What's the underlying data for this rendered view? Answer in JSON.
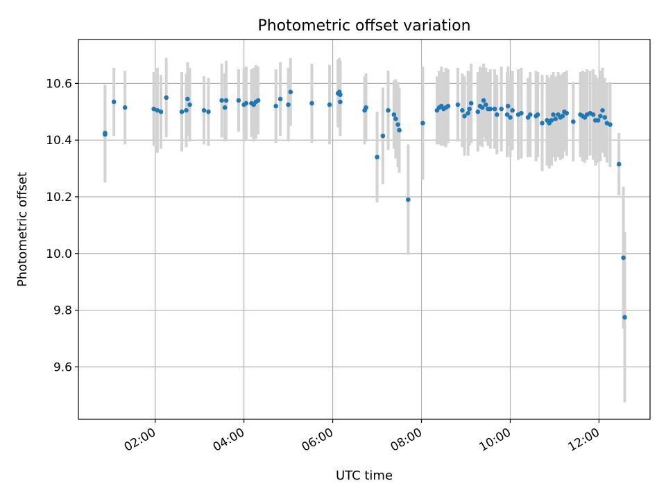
{
  "chart_data": {
    "type": "scatter",
    "title": "Photometric offset variation",
    "xlabel": "UTC time",
    "ylabel": "Photometric offset",
    "x_unit": "hours UTC",
    "xlim": [
      0.27,
      13.15
    ],
    "ylim": [
      9.415,
      10.755
    ],
    "x_ticks": [
      2,
      4,
      6,
      8,
      10,
      12
    ],
    "x_tick_labels": [
      "02:00",
      "04:00",
      "06:00",
      "08:00",
      "10:00",
      "12:00"
    ],
    "y_ticks": [
      9.6,
      9.8,
      10.0,
      10.2,
      10.4,
      10.6
    ],
    "y_tick_labels": [
      "9.6",
      "9.8",
      "10.0",
      "10.2",
      "10.4",
      "10.6"
    ],
    "grid": true,
    "marker_color": "#1f77b4",
    "errorbar_color": "#d3d3d3",
    "points": [
      {
        "x": 0.87,
        "y": 10.42,
        "err": 0.17
      },
      {
        "x": 0.87,
        "y": 10.425,
        "err": 0.17
      },
      {
        "x": 1.07,
        "y": 10.535,
        "err": 0.12
      },
      {
        "x": 1.32,
        "y": 10.515,
        "err": 0.13
      },
      {
        "x": 1.97,
        "y": 10.51,
        "err": 0.13
      },
      {
        "x": 2.05,
        "y": 10.505,
        "err": 0.15
      },
      {
        "x": 2.13,
        "y": 10.5,
        "err": 0.13
      },
      {
        "x": 2.25,
        "y": 10.55,
        "err": 0.14
      },
      {
        "x": 2.6,
        "y": 10.5,
        "err": 0.14
      },
      {
        "x": 2.7,
        "y": 10.505,
        "err": 0.13
      },
      {
        "x": 2.73,
        "y": 10.545,
        "err": 0.13
      },
      {
        "x": 2.78,
        "y": 10.525,
        "err": 0.13
      },
      {
        "x": 3.1,
        "y": 10.505,
        "err": 0.12
      },
      {
        "x": 3.2,
        "y": 10.5,
        "err": 0.12
      },
      {
        "x": 3.5,
        "y": 10.54,
        "err": 0.13
      },
      {
        "x": 3.57,
        "y": 10.515,
        "err": 0.12
      },
      {
        "x": 3.6,
        "y": 10.54,
        "err": 0.14
      },
      {
        "x": 3.88,
        "y": 10.54,
        "err": 0.11
      },
      {
        "x": 4.0,
        "y": 10.525,
        "err": 0.13
      },
      {
        "x": 4.05,
        "y": 10.53,
        "err": 0.13
      },
      {
        "x": 4.17,
        "y": 10.53,
        "err": 0.12
      },
      {
        "x": 4.22,
        "y": 10.525,
        "err": 0.13
      },
      {
        "x": 4.27,
        "y": 10.535,
        "err": 0.13
      },
      {
        "x": 4.32,
        "y": 10.54,
        "err": 0.12
      },
      {
        "x": 4.72,
        "y": 10.52,
        "err": 0.13
      },
      {
        "x": 4.82,
        "y": 10.545,
        "err": 0.13
      },
      {
        "x": 5.0,
        "y": 10.525,
        "err": 0.13
      },
      {
        "x": 5.05,
        "y": 10.57,
        "err": 0.12
      },
      {
        "x": 5.53,
        "y": 10.53,
        "err": 0.14
      },
      {
        "x": 5.93,
        "y": 10.525,
        "err": 0.14
      },
      {
        "x": 6.12,
        "y": 10.565,
        "err": 0.12
      },
      {
        "x": 6.15,
        "y": 10.57,
        "err": 0.12
      },
      {
        "x": 6.17,
        "y": 10.535,
        "err": 0.12
      },
      {
        "x": 6.17,
        "y": 10.56,
        "err": 0.12
      },
      {
        "x": 6.72,
        "y": 10.505,
        "err": 0.12
      },
      {
        "x": 6.75,
        "y": 10.515,
        "err": 0.12
      },
      {
        "x": 7.0,
        "y": 10.34,
        "err": 0.16
      },
      {
        "x": 7.13,
        "y": 10.415,
        "err": 0.17
      },
      {
        "x": 7.25,
        "y": 10.505,
        "err": 0.14
      },
      {
        "x": 7.38,
        "y": 10.49,
        "err": 0.12
      },
      {
        "x": 7.42,
        "y": 10.475,
        "err": 0.14
      },
      {
        "x": 7.47,
        "y": 10.455,
        "err": 0.15
      },
      {
        "x": 7.5,
        "y": 10.435,
        "err": 0.15
      },
      {
        "x": 7.7,
        "y": 10.19,
        "err": 0.195
      },
      {
        "x": 8.03,
        "y": 10.46,
        "err": 0.2
      },
      {
        "x": 8.35,
        "y": 10.505,
        "err": 0.12
      },
      {
        "x": 8.4,
        "y": 10.515,
        "err": 0.13
      },
      {
        "x": 8.45,
        "y": 10.52,
        "err": 0.14
      },
      {
        "x": 8.5,
        "y": 10.51,
        "err": 0.13
      },
      {
        "x": 8.55,
        "y": 10.515,
        "err": 0.14
      },
      {
        "x": 8.6,
        "y": 10.52,
        "err": 0.13
      },
      {
        "x": 8.82,
        "y": 10.525,
        "err": 0.13
      },
      {
        "x": 8.92,
        "y": 10.505,
        "err": 0.13
      },
      {
        "x": 8.97,
        "y": 10.485,
        "err": 0.14
      },
      {
        "x": 9.05,
        "y": 10.495,
        "err": 0.15
      },
      {
        "x": 9.08,
        "y": 10.51,
        "err": 0.13
      },
      {
        "x": 9.12,
        "y": 10.53,
        "err": 0.14
      },
      {
        "x": 9.27,
        "y": 10.5,
        "err": 0.14
      },
      {
        "x": 9.32,
        "y": 10.52,
        "err": 0.14
      },
      {
        "x": 9.37,
        "y": 10.515,
        "err": 0.14
      },
      {
        "x": 9.4,
        "y": 10.54,
        "err": 0.13
      },
      {
        "x": 9.45,
        "y": 10.525,
        "err": 0.13
      },
      {
        "x": 9.5,
        "y": 10.51,
        "err": 0.13
      },
      {
        "x": 9.55,
        "y": 10.51,
        "err": 0.14
      },
      {
        "x": 9.65,
        "y": 10.51,
        "err": 0.14
      },
      {
        "x": 9.7,
        "y": 10.49,
        "err": 0.14
      },
      {
        "x": 9.8,
        "y": 10.51,
        "err": 0.15
      },
      {
        "x": 9.93,
        "y": 10.49,
        "err": 0.15
      },
      {
        "x": 9.95,
        "y": 10.52,
        "err": 0.14
      },
      {
        "x": 10.0,
        "y": 10.48,
        "err": 0.14
      },
      {
        "x": 10.05,
        "y": 10.505,
        "err": 0.14
      },
      {
        "x": 10.18,
        "y": 10.49,
        "err": 0.16
      },
      {
        "x": 10.25,
        "y": 10.495,
        "err": 0.16
      },
      {
        "x": 10.4,
        "y": 10.48,
        "err": 0.14
      },
      {
        "x": 10.45,
        "y": 10.49,
        "err": 0.15
      },
      {
        "x": 10.58,
        "y": 10.485,
        "err": 0.16
      },
      {
        "x": 10.62,
        "y": 10.49,
        "err": 0.15
      },
      {
        "x": 10.72,
        "y": 10.46,
        "err": 0.17
      },
      {
        "x": 10.83,
        "y": 10.47,
        "err": 0.16
      },
      {
        "x": 10.88,
        "y": 10.46,
        "err": 0.16
      },
      {
        "x": 10.93,
        "y": 10.47,
        "err": 0.16
      },
      {
        "x": 10.97,
        "y": 10.49,
        "err": 0.15
      },
      {
        "x": 11.02,
        "y": 10.475,
        "err": 0.15
      },
      {
        "x": 11.08,
        "y": 10.49,
        "err": 0.15
      },
      {
        "x": 11.13,
        "y": 10.48,
        "err": 0.15
      },
      {
        "x": 11.18,
        "y": 10.485,
        "err": 0.15
      },
      {
        "x": 11.22,
        "y": 10.5,
        "err": 0.14
      },
      {
        "x": 11.27,
        "y": 10.495,
        "err": 0.15
      },
      {
        "x": 11.42,
        "y": 10.465,
        "err": 0.14
      },
      {
        "x": 11.58,
        "y": 10.49,
        "err": 0.15
      },
      {
        "x": 11.63,
        "y": 10.485,
        "err": 0.16
      },
      {
        "x": 11.68,
        "y": 10.48,
        "err": 0.16
      },
      {
        "x": 11.73,
        "y": 10.49,
        "err": 0.16
      },
      {
        "x": 11.8,
        "y": 10.495,
        "err": 0.15
      },
      {
        "x": 11.87,
        "y": 10.49,
        "err": 0.16
      },
      {
        "x": 11.92,
        "y": 10.47,
        "err": 0.16
      },
      {
        "x": 11.98,
        "y": 10.47,
        "err": 0.15
      },
      {
        "x": 12.03,
        "y": 10.485,
        "err": 0.16
      },
      {
        "x": 12.08,
        "y": 10.505,
        "err": 0.15
      },
      {
        "x": 12.13,
        "y": 10.48,
        "err": 0.14
      },
      {
        "x": 12.18,
        "y": 10.46,
        "err": 0.14
      },
      {
        "x": 12.25,
        "y": 10.455,
        "err": 0.15
      },
      {
        "x": 12.45,
        "y": 10.315,
        "err": 0.11
      },
      {
        "x": 12.55,
        "y": 9.985,
        "err": 0.25
      },
      {
        "x": 12.58,
        "y": 9.775,
        "err": 0.3
      }
    ]
  }
}
